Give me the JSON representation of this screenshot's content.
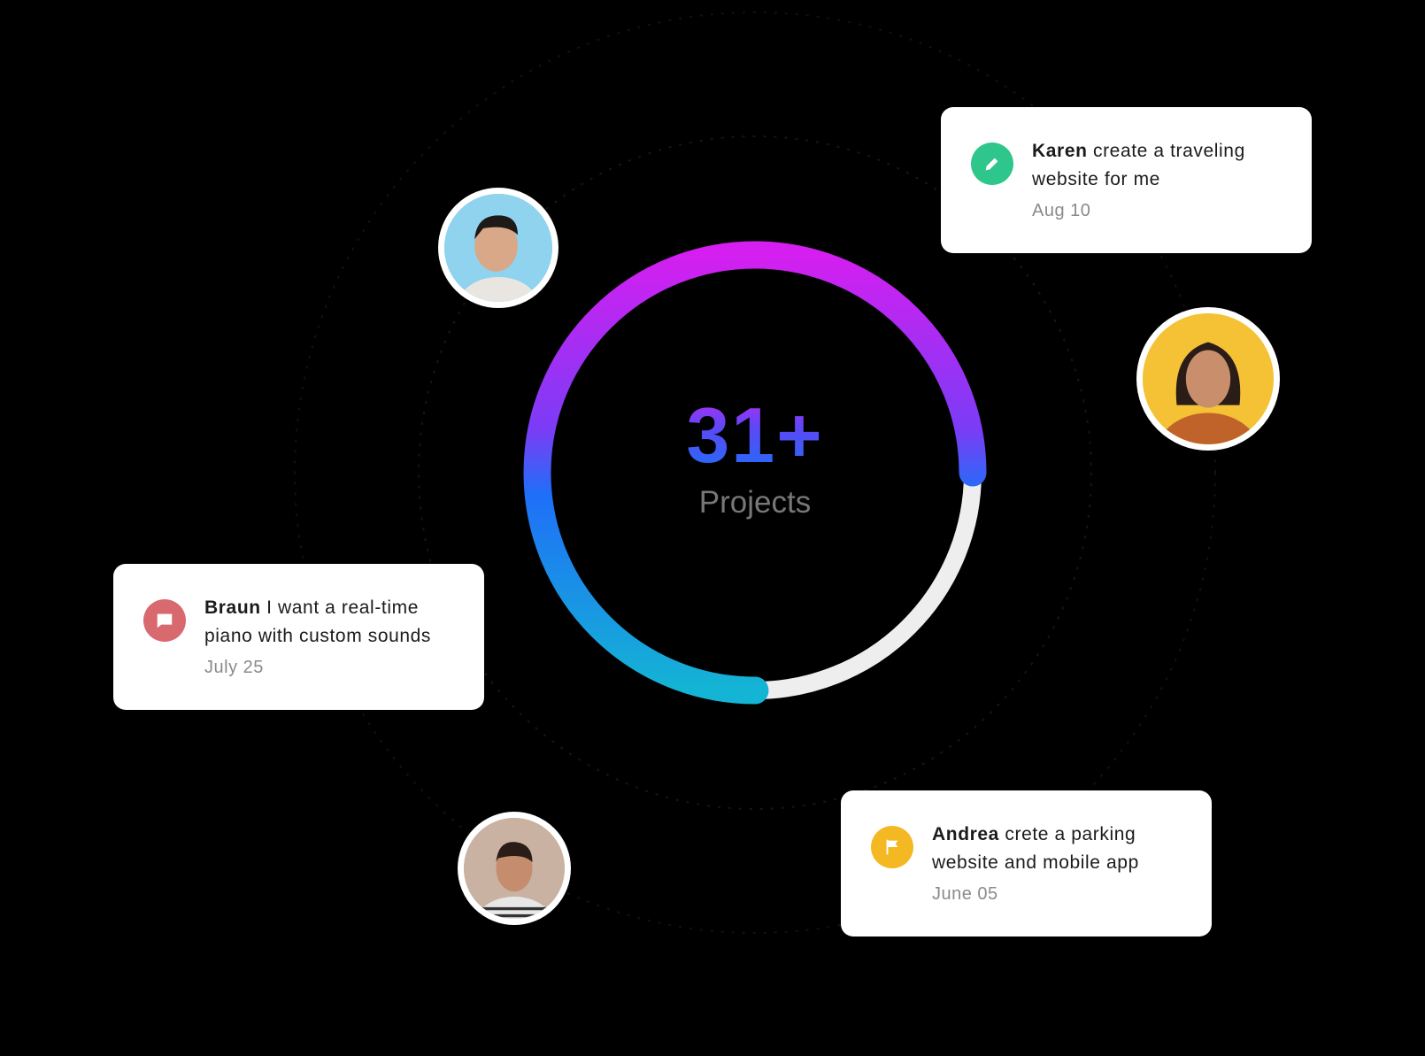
{
  "stat": {
    "value": "31+",
    "label": "Projects",
    "progress_percent": 75
  },
  "colors": {
    "background": "#000000",
    "gradient": [
      "#d41ff0",
      "#7b3cf6",
      "#1f6ff8",
      "#14b4d4"
    ],
    "track": "#eeeeee",
    "green": "#2ec68a",
    "pink": "#d8696f",
    "yellow": "#f4b823"
  },
  "cards": [
    {
      "name": "Karen",
      "message": "create a traveling website for me",
      "date": "Aug 10",
      "icon": "pencil-icon"
    },
    {
      "name": "Braun",
      "message": "I want a real-time piano with custom sounds",
      "date": "July 25",
      "icon": "chat-bubble-icon"
    },
    {
      "name": "Andrea",
      "message": "crete a parking website and mobile app",
      "date": "June 05",
      "icon": "flag-icon"
    }
  ],
  "avatars": [
    {
      "bg": "#8fd3ee"
    },
    {
      "bg": "#f4c234"
    },
    {
      "bg": "#c9b2a2"
    }
  ]
}
